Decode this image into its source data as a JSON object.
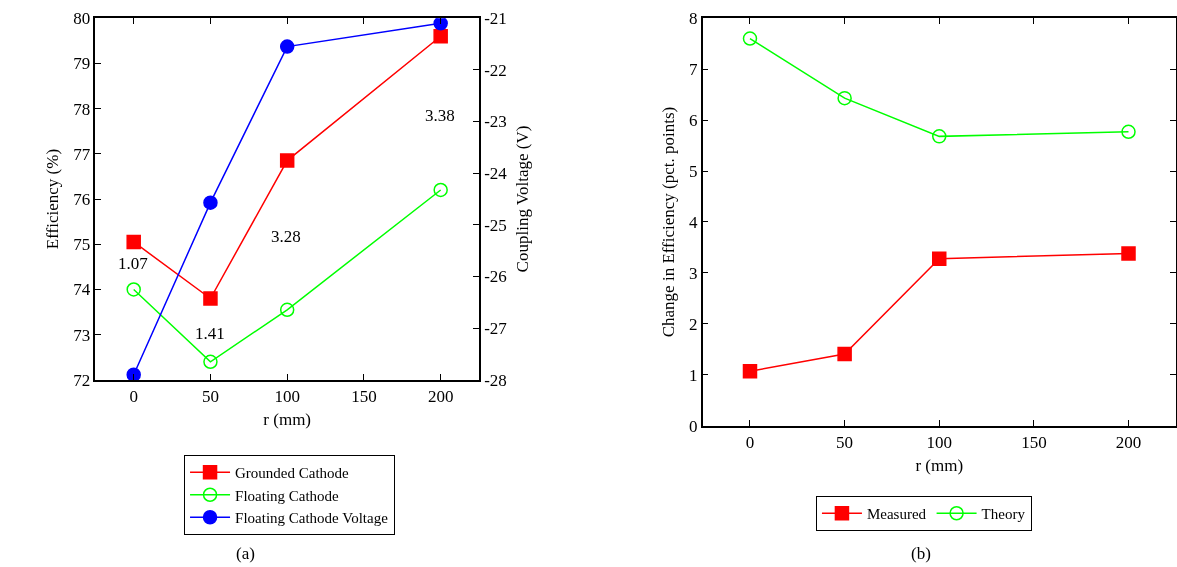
{
  "chart_data": [
    {
      "type": "line",
      "xlabel": "r (mm)",
      "ylabel": "Efficiency (%)",
      "y2label": "Coupling Voltage (V)",
      "x": [
        0,
        50,
        100,
        200
      ],
      "xlim": [
        -25,
        225
      ],
      "xticks": [
        0,
        50,
        100,
        150,
        200
      ],
      "ylim": [
        72,
        80
      ],
      "yticks": [
        72,
        73,
        74,
        75,
        76,
        77,
        78,
        79,
        80
      ],
      "y2lim": [
        -28,
        -21
      ],
      "y2ticks": [
        -28,
        -27,
        -26,
        -25,
        -24,
        -23,
        -22,
        -21
      ],
      "series": [
        {
          "name": "Grounded Cathode",
          "color": "#ff0000",
          "marker": "square",
          "values": [
            75.05,
            73.8,
            76.85,
            79.6
          ]
        },
        {
          "name": "Floating Cathode",
          "color": "#00ff00",
          "marker": "circle-open",
          "values": [
            74.0,
            72.4,
            73.55,
            76.2
          ]
        },
        {
          "name": "Floating Cathode Voltage",
          "color": "#0000ff",
          "marker": "circle",
          "axis": "y2",
          "values": [
            -27.9,
            -24.57,
            -21.55,
            -21.1
          ]
        }
      ],
      "annotations": [
        "1.07",
        "1.41",
        "3.28",
        "3.38",
        "(a)"
      ],
      "legend": "bottom",
      "line_style": "solid"
    },
    {
      "type": "line",
      "xlabel": "r (mm)",
      "ylabel": "Change in Efficiency (pct. points)",
      "x": [
        0,
        50,
        100,
        200
      ],
      "xlim": [
        -25,
        225
      ],
      "xticks": [
        0,
        50,
        100,
        150,
        200
      ],
      "ylim": [
        0,
        8
      ],
      "yticks": [
        0,
        1,
        2,
        3,
        4,
        5,
        6,
        7,
        8
      ],
      "series": [
        {
          "name": "Measured",
          "color": "#ff0000",
          "marker": "square",
          "values": [
            1.07,
            1.41,
            3.28,
            3.38
          ]
        },
        {
          "name": "Theory",
          "color": "#00ff00",
          "marker": "circle-open",
          "values": [
            7.6,
            6.43,
            5.68,
            5.77
          ]
        }
      ],
      "annotations": [
        "(b)"
      ],
      "legend": "bottom",
      "line_style": "solid"
    }
  ]
}
